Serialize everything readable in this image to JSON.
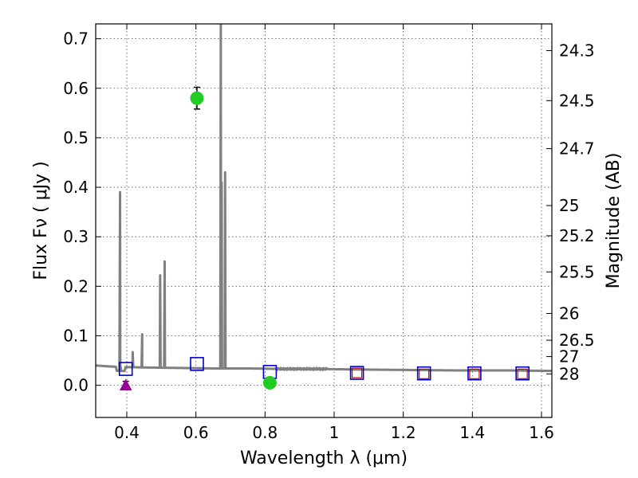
{
  "chart_data": {
    "type": "scatter",
    "title": "",
    "xlabel": "Wavelength  λ (μm)",
    "ylabel": "Flux  Fν  ( μJy )",
    "ylabel_right": "Magnitude (AB)",
    "xlim": [
      0.31,
      1.63
    ],
    "ylim": [
      -0.065,
      0.73
    ],
    "x_ticks": [
      0.4,
      0.6,
      0.8,
      1.0,
      1.2,
      1.4,
      1.6
    ],
    "x_tick_labels": [
      "0.4",
      "0.6",
      "0.8",
      "1",
      "1.2",
      "1.4",
      "1.6"
    ],
    "y_ticks": [
      0.0,
      0.1,
      0.2,
      0.3,
      0.4,
      0.5,
      0.6,
      0.7
    ],
    "y_tick_labels": [
      "0.0",
      "0.1",
      "0.2",
      "0.3",
      "0.4",
      "0.5",
      "0.6",
      "0.7"
    ],
    "right_ticks": [
      {
        "label": "24.3",
        "flux": 0.676
      },
      {
        "label": "24.5",
        "flux": 0.575
      },
      {
        "label": "24.7",
        "flux": 0.478
      },
      {
        "label": "25",
        "flux": 0.363
      },
      {
        "label": "25.2",
        "flux": 0.302
      },
      {
        "label": "25.5",
        "flux": 0.229
      },
      {
        "label": "26",
        "flux": 0.145
      },
      {
        "label": "26.5",
        "flux": 0.091
      },
      {
        "label": "27",
        "flux": 0.058
      },
      {
        "label": "28",
        "flux": 0.023
      }
    ],
    "grid": true,
    "colors": {
      "sed": "#808080",
      "observed": "#22cc22",
      "upper_limit": "#990099",
      "model_blue": "#0000cc",
      "model_red": "#cc0000",
      "errorbar": "#000000"
    },
    "series": [
      {
        "name": "SED model spectrum",
        "style": "line",
        "continuum": [
          [
            0.31,
            0.04
          ],
          [
            0.35,
            0.038
          ],
          [
            0.38,
            0.037
          ],
          [
            0.45,
            0.036
          ],
          [
            0.55,
            0.035
          ],
          [
            0.65,
            0.034
          ],
          [
            0.75,
            0.034
          ],
          [
            0.85,
            0.033
          ],
          [
            0.95,
            0.033
          ],
          [
            1.05,
            0.032
          ],
          [
            1.2,
            0.031
          ],
          [
            1.35,
            0.03
          ],
          [
            1.5,
            0.03
          ],
          [
            1.63,
            0.029
          ]
        ],
        "emission_lines": [
          {
            "x": 0.3805,
            "peak": 0.39
          },
          {
            "x": 0.417,
            "peak": 0.067
          },
          {
            "x": 0.4445,
            "peak": 0.103
          },
          {
            "x": 0.4965,
            "peak": 0.222
          },
          {
            "x": 0.5095,
            "peak": 0.25
          },
          {
            "x": 0.672,
            "peak": 0.73
          },
          {
            "x": 0.6745,
            "peak": 0.41
          },
          {
            "x": 0.6845,
            "peak": 0.43
          }
        ]
      },
      {
        "name": "Observed photometry",
        "style": "circle",
        "points": [
          {
            "x": 0.603,
            "y": 0.58,
            "err": 0.022
          },
          {
            "x": 0.814,
            "y": 0.005,
            "err": 0.008
          }
        ]
      },
      {
        "name": "Upper limit",
        "style": "triangle",
        "points": [
          {
            "x": 0.397,
            "y": 0.0,
            "err": 0.008
          }
        ]
      },
      {
        "name": "Model photometry (blue)",
        "style": "open-square",
        "points": [
          {
            "x": 0.397,
            "y": 0.033
          },
          {
            "x": 0.603,
            "y": 0.043
          },
          {
            "x": 0.814,
            "y": 0.027
          },
          {
            "x": 1.066,
            "y": 0.025
          },
          {
            "x": 1.26,
            "y": 0.024
          },
          {
            "x": 1.406,
            "y": 0.024
          },
          {
            "x": 1.545,
            "y": 0.024
          }
        ]
      },
      {
        "name": "Model photometry (red)",
        "style": "open-square-small",
        "points": [
          {
            "x": 1.066,
            "y": 0.025
          },
          {
            "x": 1.26,
            "y": 0.023
          },
          {
            "x": 1.406,
            "y": 0.023
          },
          {
            "x": 1.545,
            "y": 0.023
          }
        ]
      }
    ]
  }
}
